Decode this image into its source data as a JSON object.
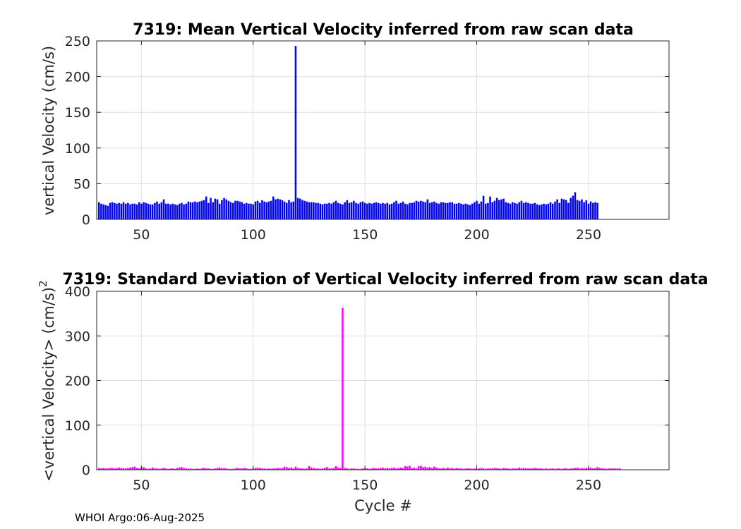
{
  "footer": "WHOI Argo:06-Aug-2025",
  "colors": {
    "mean_bar": "#0000ff",
    "std_bar": "#ff00ff",
    "grid": "#dfdfdf",
    "axis": "#262626"
  },
  "chart_data": [
    {
      "type": "bar",
      "title": "7319: Mean Vertical Velocity inferred from raw scan data",
      "xlabel": "",
      "ylabel": "vertical Velocity (cm/s)",
      "xlim": [
        30,
        286
      ],
      "ylim": [
        0,
        250
      ],
      "xticks": [
        50,
        100,
        150,
        200,
        250
      ],
      "yticks": [
        0,
        50,
        100,
        150,
        200,
        250
      ],
      "grid": true,
      "x_start": 31,
      "values": [
        24,
        22,
        21,
        20,
        19,
        23,
        24,
        23,
        22,
        23,
        22,
        24,
        22,
        23,
        21,
        22,
        22,
        21,
        24,
        22,
        24,
        23,
        22,
        21,
        21,
        23,
        25,
        22,
        24,
        28,
        22,
        22,
        21,
        22,
        21,
        20,
        22,
        23,
        21,
        22,
        25,
        24,
        24,
        25,
        24,
        25,
        26,
        27,
        32,
        23,
        30,
        24,
        29,
        28,
        22,
        27,
        30,
        28,
        26,
        24,
        23,
        26,
        26,
        25,
        24,
        22,
        23,
        22,
        22,
        21,
        25,
        26,
        23,
        27,
        25,
        24,
        25,
        26,
        32,
        28,
        29,
        28,
        27,
        25,
        23,
        27,
        24,
        25,
        243,
        30,
        29,
        27,
        26,
        25,
        24,
        24,
        24,
        23,
        23,
        22,
        21,
        22,
        22,
        23,
        22,
        24,
        26,
        23,
        22,
        21,
        24,
        27,
        23,
        24,
        26,
        23,
        22,
        24,
        25,
        23,
        22,
        23,
        22,
        23,
        24,
        23,
        22,
        23,
        22,
        23,
        21,
        22,
        24,
        26,
        22,
        23,
        25,
        22,
        21,
        23,
        23,
        24,
        26,
        25,
        26,
        25,
        24,
        28,
        23,
        24,
        25,
        23,
        22,
        24,
        24,
        23,
        23,
        24,
        24,
        22,
        22,
        23,
        22,
        21,
        22,
        21,
        20,
        22,
        24,
        26,
        22,
        25,
        33,
        22,
        23,
        32,
        24,
        26,
        30,
        27,
        28,
        29,
        24,
        23,
        22,
        24,
        23,
        22,
        24,
        26,
        23,
        24,
        23,
        22,
        22,
        23,
        21,
        20,
        21,
        22,
        21,
        22,
        24,
        22,
        25,
        28,
        23,
        29,
        28,
        27,
        23,
        30,
        33,
        38,
        27,
        26,
        28,
        24,
        27,
        22,
        25,
        23,
        24,
        23
      ]
    },
    {
      "type": "bar",
      "title": "7319: Standard Deviation of Vertical Velocity inferred from raw scan data",
      "xlabel": "Cycle #",
      "ylabel": "<vertical Velocity> (cm/s)",
      "ylabel_superscript": "2",
      "xlim": [
        30,
        286
      ],
      "ylim": [
        0,
        400
      ],
      "xticks": [
        50,
        100,
        150,
        200,
        250
      ],
      "yticks": [
        0,
        100,
        200,
        300,
        400
      ],
      "grid": true,
      "x_start": 31,
      "values": [
        4,
        3,
        4,
        3,
        3,
        4,
        4,
        3,
        4,
        5,
        4,
        3,
        3,
        4,
        5,
        6,
        7,
        4,
        3,
        5,
        6,
        3,
        2,
        3,
        5,
        3,
        3,
        2,
        3,
        4,
        3,
        2,
        3,
        3,
        2,
        4,
        5,
        6,
        4,
        3,
        2,
        3,
        2,
        2,
        3,
        2,
        3,
        4,
        3,
        3,
        2,
        2,
        3,
        4,
        5,
        3,
        4,
        3,
        2,
        2,
        2,
        3,
        4,
        3,
        3,
        4,
        3,
        2,
        2,
        3,
        4,
        5,
        4,
        3,
        3,
        2,
        3,
        2,
        3,
        3,
        4,
        3,
        4,
        7,
        6,
        4,
        5,
        3,
        7,
        4,
        3,
        3,
        2,
        3,
        8,
        5,
        4,
        3,
        3,
        2,
        3,
        4,
        6,
        3,
        3,
        4,
        8,
        5,
        4,
        363,
        4,
        3,
        2,
        3,
        3,
        2,
        2,
        2,
        3,
        3,
        3,
        2,
        3,
        4,
        3,
        3,
        4,
        5,
        3,
        4,
        3,
        4,
        5,
        3,
        4,
        5,
        4,
        8,
        7,
        9,
        4,
        5,
        3,
        8,
        9,
        6,
        7,
        5,
        6,
        4,
        7,
        5,
        3,
        3,
        4,
        3,
        5,
        3,
        4,
        3,
        4,
        3,
        3,
        2,
        3,
        3,
        3,
        2,
        3,
        2,
        3,
        4,
        3,
        2,
        3,
        3,
        3,
        4,
        3,
        3,
        2,
        4,
        3,
        3,
        2,
        3,
        3,
        3,
        5,
        3,
        4,
        3,
        3,
        3,
        3,
        4,
        3,
        3,
        3,
        2,
        3,
        2,
        3,
        3,
        2,
        3,
        3,
        2,
        3,
        3,
        2,
        3,
        3,
        4,
        5,
        3,
        4,
        3,
        4,
        4,
        5,
        3,
        4,
        6,
        4,
        3,
        3,
        2,
        3,
        3,
        3,
        3,
        3,
        3
      ]
    }
  ]
}
